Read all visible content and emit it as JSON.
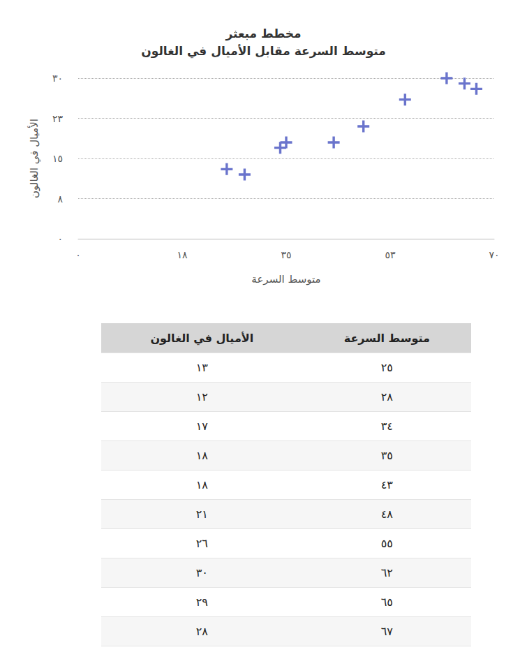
{
  "chart_data": {
    "type": "scatter",
    "title": "مخطط مبعثر",
    "subtitle": "متوسط السرعة مقابل الأميال في الغالون",
    "x_label": "متوسط السرعة",
    "y_label": "الأميال في الغالون",
    "x": [
      25,
      28,
      34,
      35,
      43,
      48,
      55,
      62,
      65,
      67
    ],
    "values": [
      13,
      12,
      17,
      18,
      18,
      21,
      26,
      30,
      29,
      28
    ],
    "color": "#6a74cc",
    "marker": "plus",
    "xlim": [
      0,
      70
    ],
    "xticks": [
      {
        "value": 0,
        "label": "٠"
      },
      {
        "value": 17.5,
        "label": "١٨"
      },
      {
        "value": 35,
        "label": "٣٥"
      },
      {
        "value": 52.5,
        "label": "٥٣"
      },
      {
        "value": 70,
        "label": "٧٠"
      }
    ],
    "ylim": [
      0,
      30
    ],
    "yticks": [
      {
        "value": 0,
        "label": "٠"
      },
      {
        "value": 7.5,
        "label": "٨"
      },
      {
        "value": 15,
        "label": "١٥"
      },
      {
        "value": 22.5,
        "label": "٢٣"
      },
      {
        "value": 30,
        "label": "٣٠"
      }
    ],
    "grid": "y"
  },
  "table": {
    "header": [
      "متوسط السرعة",
      "الأميال في الغالون"
    ],
    "rows": [
      [
        "٢٥",
        "١٣"
      ],
      [
        "٢٨",
        "١٢"
      ],
      [
        "٣٤",
        "١٧"
      ],
      [
        "٣٥",
        "١٨"
      ],
      [
        "٤٣",
        "١٨"
      ],
      [
        "٤٨",
        "٢١"
      ],
      [
        "٥٥",
        "٢٦"
      ],
      [
        "٦٢",
        "٣٠"
      ],
      [
        "٦٥",
        "٢٩"
      ],
      [
        "٦٧",
        "٢٨"
      ]
    ]
  }
}
